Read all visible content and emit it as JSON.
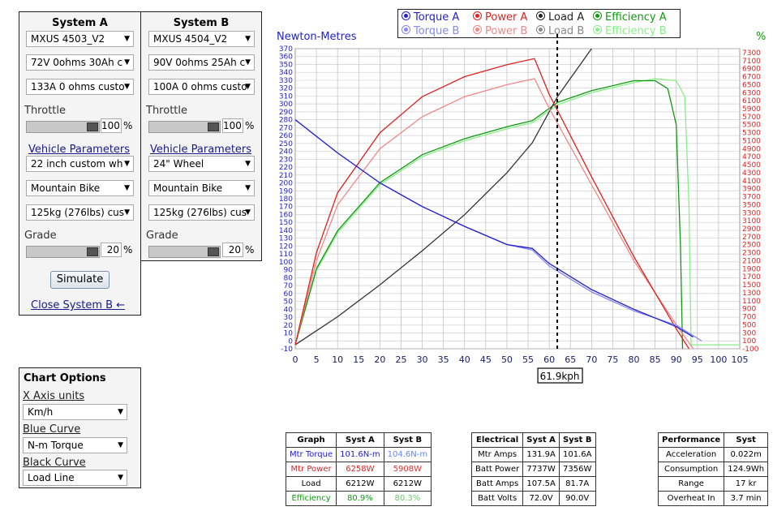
{
  "system_a": {
    "title": "System A",
    "motor": "MXUS 4503_V2",
    "battery": "72V 0ohms 30Ah c",
    "controller": "133A 0 ohms custo",
    "throttle_label": "Throttle",
    "throttle_value": "100",
    "vehicle_params_label": "Vehicle Parameters",
    "wheel": "22 inch custom wh",
    "bike_type": "Mountain Bike",
    "weight": "125kg (276lbs) cus",
    "grade_label": "Grade",
    "grade_value": "20",
    "pct": "%",
    "simulate_label": "Simulate",
    "close_label": "Close System B ←"
  },
  "system_b": {
    "title": "System B",
    "motor": "MXUS 4504_V2",
    "battery": "90V 0ohms 25Ah c",
    "controller": "100A 0 ohms custo",
    "throttle_label": "Throttle",
    "throttle_value": "100",
    "vehicle_params_label": "Vehicle Parameters",
    "wheel": "24\"  Wheel",
    "bike_type": "Mountain Bike",
    "weight": "125kg (276lbs) cus",
    "grade_label": "Grade",
    "grade_value": "20",
    "pct": "%"
  },
  "chart_options": {
    "title": "Chart Options",
    "x_axis_label": "X Axis units",
    "x_axis_value": "Km/h",
    "blue_curve_label": "Blue Curve",
    "blue_curve_value": "N-m Torque",
    "black_curve_label": "Black Curve",
    "black_curve_value": "Load Line"
  },
  "legend": {
    "torque_a": "Torque A",
    "power_a": "Power A",
    "load_a": "Load A",
    "eff_a": "Efficiency A",
    "torque_b": "Torque B",
    "power_b": "Power B",
    "load_b": "Load B",
    "eff_b": "Efficiency B"
  },
  "colors": {
    "torque_a": "#2222cc",
    "torque_b": "#8888ee",
    "power_a": "#dd2222",
    "power_b": "#f08888",
    "load_a": "#333333",
    "load_b": "#888888",
    "eff_a": "#119911",
    "eff_b": "#88ee88"
  },
  "chart_data": {
    "type": "line",
    "xlabel": "",
    "ylabel_left": "Newton-Metres",
    "ylabel_right": "%",
    "xlim": [
      0,
      105
    ],
    "ylim_left": [
      -10,
      370
    ],
    "ylim_right": [
      -100,
      7400
    ],
    "x_ticks": [
      "0",
      "5",
      "10",
      "15",
      "20",
      "25",
      "30",
      "35",
      "40",
      "45",
      "50",
      "55",
      "60",
      "65",
      "70",
      "75",
      "80",
      "85",
      "90",
      "95",
      "100",
      "105"
    ],
    "marker_label": "61.9kph",
    "marker_x": 61.9,
    "series": [
      {
        "name": "Torque A",
        "key": "torque_a",
        "axis": "left",
        "x": [
          0,
          10,
          20,
          30,
          40,
          50,
          56,
          60,
          70,
          80,
          90,
          94
        ],
        "y": [
          280,
          238,
          200,
          170,
          145,
          122,
          117,
          98,
          65,
          40,
          18,
          5
        ]
      },
      {
        "name": "Torque B",
        "key": "torque_b",
        "axis": "left",
        "x": [
          0,
          10,
          20,
          30,
          40,
          50,
          56,
          60,
          70,
          80,
          90,
          96
        ],
        "y": [
          280,
          238,
          200,
          170,
          145,
          122,
          115,
          95,
          62,
          38,
          20,
          0
        ]
      },
      {
        "name": "Power A",
        "key": "power_a",
        "axis": "right",
        "x": [
          0,
          5,
          10,
          20,
          30,
          40,
          50,
          56.5,
          60,
          70,
          80,
          90,
          93
        ],
        "y": [
          0,
          2300,
          3800,
          5300,
          6200,
          6700,
          7000,
          7150,
          6258,
          4200,
          2200,
          400,
          -100
        ]
      },
      {
        "name": "Power B",
        "key": "power_b",
        "axis": "right",
        "x": [
          0,
          5,
          10,
          20,
          30,
          40,
          50,
          56.5,
          60,
          70,
          80,
          90,
          94
        ],
        "y": [
          0,
          2100,
          3500,
          4900,
          5700,
          6200,
          6500,
          6650,
          5908,
          4000,
          2100,
          500,
          -100
        ]
      },
      {
        "name": "Load A",
        "key": "load_a",
        "axis": "right",
        "x": [
          0,
          10,
          20,
          30,
          40,
          50,
          56,
          62,
          70
        ],
        "y": [
          0,
          700,
          1500,
          2350,
          3250,
          4300,
          5050,
          6212,
          7400
        ]
      },
      {
        "name": "Efficiency A",
        "key": "eff_a",
        "axis": "right",
        "x": [
          0,
          5,
          10,
          20,
          30,
          40,
          50,
          56,
          62,
          70,
          80,
          85,
          88,
          90,
          91,
          91.5
        ],
        "y": [
          0,
          1900,
          2850,
          4050,
          4750,
          5150,
          5450,
          5600,
          6060,
          6350,
          6600,
          6600,
          6400,
          5500,
          2500,
          -100
        ]
      },
      {
        "name": "Efficiency B",
        "key": "eff_b",
        "axis": "right",
        "x": [
          0,
          5,
          10,
          20,
          30,
          40,
          50,
          56,
          62,
          70,
          80,
          85,
          90,
          92,
          93,
          93.5,
          105
        ],
        "y": [
          0,
          1850,
          2800,
          4000,
          4700,
          5100,
          5400,
          5550,
          6000,
          6300,
          6550,
          6650,
          6600,
          6200,
          3500,
          0,
          0
        ]
      }
    ]
  },
  "graph_table": {
    "headers": [
      "Graph",
      "Syst A",
      "Syst B"
    ],
    "rows": [
      [
        "Mtr Torque",
        "101.6N-m",
        "104.6N-m"
      ],
      [
        "Mtr Power",
        "6258W",
        "5908W"
      ],
      [
        "Load",
        "6212W",
        "6212W"
      ],
      [
        "Efficiency",
        "80.9%",
        "80.3%"
      ]
    ]
  },
  "electrical_table": {
    "headers": [
      "Electrical",
      "Syst A",
      "Syst B"
    ],
    "rows": [
      [
        "Mtr Amps",
        "131.9A",
        "101.6A"
      ],
      [
        "Batt Power",
        "7737W",
        "7356W"
      ],
      [
        "Batt Amps",
        "107.5A",
        "81.7A"
      ],
      [
        "Batt Volts",
        "72.0V",
        "90.0V"
      ]
    ]
  },
  "performance_table": {
    "headers": [
      "Performance",
      "Syst"
    ],
    "rows": [
      [
        "Acceleration",
        "0.022m"
      ],
      [
        "Consumption",
        "124.9Wh"
      ],
      [
        "Range",
        "17 kr"
      ],
      [
        "Overheat In",
        "3.7 min"
      ]
    ]
  }
}
